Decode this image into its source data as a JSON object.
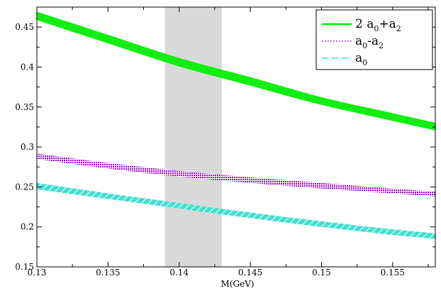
{
  "chart_data": {
    "type": "line",
    "title": "",
    "xlabel": "M(GeV)",
    "ylabel": "",
    "xlim": [
      0.13,
      0.158
    ],
    "ylim": [
      0.15,
      0.475
    ],
    "x_ticks": [
      0.13,
      0.135,
      0.14,
      0.145,
      0.15,
      0.155
    ],
    "x_tick_labels": [
      "0.13",
      "0.135",
      "0.14",
      "0.145",
      "0.15",
      "0.155"
    ],
    "y_ticks": [
      0.15,
      0.2,
      0.25,
      0.3,
      0.35,
      0.4,
      0.45
    ],
    "y_tick_labels": [
      "0.15",
      "0.2",
      "0.25",
      "0.3",
      "0.35",
      "0.4",
      "0.45"
    ],
    "grid": false,
    "legend_position": "top-right",
    "shaded_region": {
      "x": [
        0.139,
        0.143
      ],
      "color": "#d9d9d9"
    },
    "x": [
      0.13,
      0.135,
      0.14,
      0.145,
      0.15,
      0.155,
      0.158
    ],
    "series": [
      {
        "legend_main": "2 a",
        "legend_parts": [
          {
            "t": "2 a",
            "s": ""
          },
          {
            "t": "0",
            "s": "sub"
          },
          {
            "t": "+a",
            "s": ""
          },
          {
            "t": "2",
            "s": "sub"
          }
        ],
        "style": "solid",
        "color": "#00ee00",
        "fill": "#11ee11",
        "lower": [
          0.459,
          0.43,
          0.401,
          0.377,
          0.353,
          0.333,
          0.321
        ],
        "upper": [
          0.469,
          0.44,
          0.411,
          0.387,
          0.362,
          0.342,
          0.33
        ]
      },
      {
        "legend_parts": [
          {
            "t": "a",
            "s": ""
          },
          {
            "t": "0",
            "s": "sub"
          },
          {
            "t": "-a",
            "s": ""
          },
          {
            "t": "2",
            "s": "sub"
          }
        ],
        "style": "dotted",
        "color": "#9900cc",
        "fill": "#a020c8",
        "lower": [
          0.285,
          0.273,
          0.263,
          0.255,
          0.248,
          0.242,
          0.238
        ],
        "upper": [
          0.292,
          0.28,
          0.27,
          0.262,
          0.255,
          0.248,
          0.244
        ]
      },
      {
        "legend_parts": [
          {
            "t": "a",
            "s": ""
          },
          {
            "t": "0",
            "s": "sub"
          }
        ],
        "style": "dashed",
        "color": "#40e0d0",
        "fill": "#40e0d0",
        "lower": [
          0.247,
          0.235,
          0.223,
          0.211,
          0.2,
          0.19,
          0.185
        ],
        "upper": [
          0.255,
          0.242,
          0.23,
          0.218,
          0.207,
          0.197,
          0.192
        ]
      }
    ]
  }
}
